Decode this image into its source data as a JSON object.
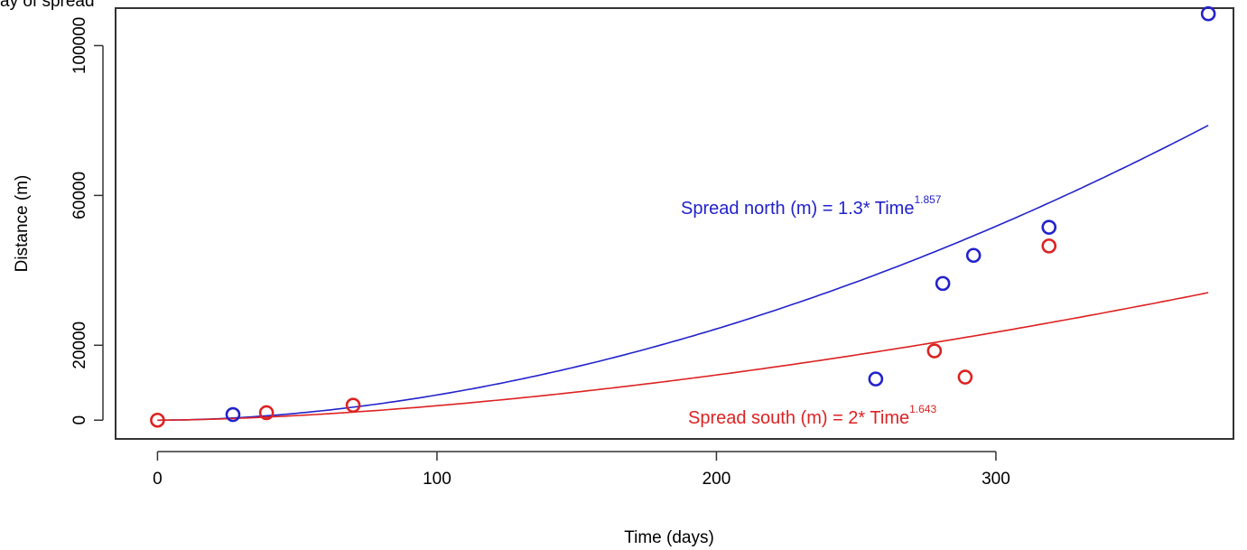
{
  "header_text": "ay of spread",
  "chart_data": {
    "type": "scatter",
    "title": "",
    "xlabel": "Time (days)",
    "ylabel": "Distance (m)",
    "xlim": [
      -15,
      385
    ],
    "ylim": [
      -5000,
      110000
    ],
    "x_ticks": [
      0,
      100,
      200,
      300
    ],
    "y_ticks": [
      0,
      20000,
      60000,
      100000
    ],
    "y_tick_labels": [
      "0",
      "20000",
      "60000",
      "100000"
    ],
    "grid": false,
    "legend": "none",
    "series": [
      {
        "color": "#2222cc",
        "points": [
          [
            27,
            1500
          ],
          [
            257,
            11000
          ],
          [
            281,
            36500
          ],
          [
            292,
            44000
          ],
          [
            319,
            51500
          ],
          [
            376,
            108500
          ]
        ],
        "fit": {
          "a": 1.3,
          "b": 1.857,
          "x_range": [
            0,
            376
          ]
        },
        "label": {
          "text": "Spread north (m) = 1.3* Time",
          "exponent": "1.857"
        }
      },
      {
        "color": "#dd2222",
        "points": [
          [
            0,
            0
          ],
          [
            39,
            2000
          ],
          [
            70,
            4000
          ],
          [
            278,
            18500
          ],
          [
            289,
            11500
          ],
          [
            319,
            46500
          ]
        ],
        "fit": {
          "a": 2,
          "b": 1.643,
          "x_range": [
            0,
            376
          ]
        },
        "label": {
          "text": "Spread south (m) = 2* Time",
          "exponent": "1.643"
        }
      }
    ]
  }
}
